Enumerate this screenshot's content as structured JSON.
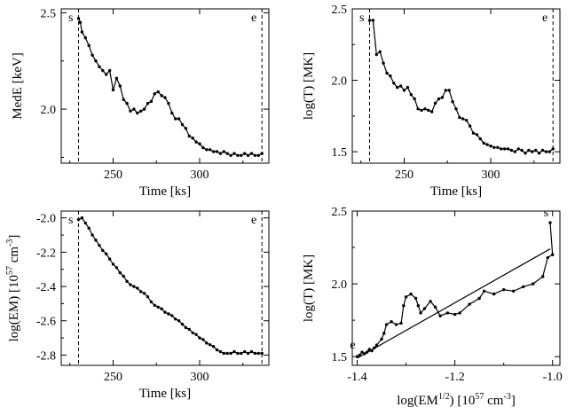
{
  "chart_data": [
    {
      "type": "line",
      "id": "mede",
      "xlabel": "Time [ks]",
      "ylabel": "MedE [keV]",
      "xlim": [
        220,
        340
      ],
      "ylim": [
        1.72,
        2.52
      ],
      "xticks": [
        250,
        300
      ],
      "xtick_labels": [
        "250",
        "300"
      ],
      "yticks": [
        2.0,
        2.5
      ],
      "ytick_labels": [
        "2.0",
        "2.5"
      ],
      "vlines": [
        {
          "x": 230,
          "label": "s"
        },
        {
          "x": 336,
          "label": "e"
        }
      ],
      "series": [
        {
          "name": "MedE",
          "x": [
            230,
            231,
            232,
            234,
            236,
            238,
            240,
            242,
            244,
            246,
            248,
            250,
            252,
            254,
            256,
            258,
            260,
            262,
            264,
            266,
            268,
            270,
            272,
            274,
            276,
            278,
            280,
            282,
            284,
            286,
            288,
            290,
            292,
            294,
            296,
            298,
            300,
            302,
            304,
            306,
            308,
            310,
            312,
            314,
            316,
            318,
            320,
            322,
            324,
            326,
            328,
            330,
            332,
            334,
            336
          ],
          "y": [
            2.47,
            2.45,
            2.4,
            2.37,
            2.33,
            2.28,
            2.25,
            2.22,
            2.2,
            2.18,
            2.2,
            2.1,
            2.16,
            2.12,
            2.05,
            2.03,
            1.99,
            2.0,
            1.98,
            1.99,
            2.0,
            2.03,
            2.04,
            2.08,
            2.09,
            2.07,
            2.06,
            2.03,
            1.98,
            1.95,
            1.95,
            1.92,
            1.9,
            1.86,
            1.85,
            1.83,
            1.82,
            1.8,
            1.79,
            1.79,
            1.78,
            1.78,
            1.77,
            1.78,
            1.77,
            1.76,
            1.77,
            1.76,
            1.76,
            1.77,
            1.76,
            1.77,
            1.76,
            1.76,
            1.77
          ]
        }
      ]
    },
    {
      "type": "line",
      "id": "logT",
      "xlabel": "Time [ks]",
      "ylabel": "log(T) [MK]",
      "xlim": [
        220,
        340
      ],
      "ylim": [
        1.42,
        2.5
      ],
      "xticks": [
        250,
        300
      ],
      "xtick_labels": [
        "250",
        "300"
      ],
      "yticks": [
        1.5,
        2.0,
        2.5
      ],
      "ytick_labels": [
        "1.5",
        "2.0",
        "2.5"
      ],
      "vlines": [
        {
          "x": 230,
          "label": "s"
        },
        {
          "x": 336,
          "label": "e"
        }
      ],
      "series": [
        {
          "name": "log(T)",
          "x": [
            230,
            232,
            234,
            236,
            238,
            240,
            242,
            244,
            246,
            248,
            250,
            252,
            254,
            256,
            258,
            260,
            262,
            264,
            266,
            268,
            270,
            272,
            274,
            276,
            278,
            280,
            282,
            284,
            286,
            288,
            290,
            292,
            294,
            296,
            298,
            300,
            302,
            304,
            306,
            308,
            310,
            312,
            314,
            316,
            318,
            320,
            322,
            324,
            326,
            328,
            330,
            332,
            334,
            336
          ],
          "y": [
            2.42,
            2.42,
            2.18,
            2.2,
            2.12,
            2.05,
            2.03,
            1.98,
            1.95,
            1.96,
            1.93,
            1.95,
            1.9,
            1.87,
            1.8,
            1.79,
            1.8,
            1.79,
            1.78,
            1.84,
            1.87,
            1.88,
            1.93,
            1.93,
            1.85,
            1.8,
            1.74,
            1.73,
            1.72,
            1.68,
            1.63,
            1.62,
            1.59,
            1.56,
            1.55,
            1.54,
            1.53,
            1.53,
            1.52,
            1.52,
            1.52,
            1.51,
            1.5,
            1.52,
            1.51,
            1.49,
            1.51,
            1.5,
            1.51,
            1.49,
            1.51,
            1.5,
            1.5,
            1.52
          ]
        }
      ]
    },
    {
      "type": "line",
      "id": "logEM",
      "xlabel": "Time [ks]",
      "ylabel_main": "log(EM) [10",
      "ylabel_sup1": "57",
      "ylabel_mid": " cm",
      "ylabel_sup2": "-3",
      "ylabel_end": "]",
      "xlim": [
        220,
        340
      ],
      "ylim": [
        -2.86,
        -1.96
      ],
      "xticks": [
        250,
        300
      ],
      "xtick_labels": [
        "250",
        "300"
      ],
      "yticks": [
        -2.8,
        -2.6,
        -2.4,
        -2.2,
        -2.0
      ],
      "ytick_labels": [
        "-2.8",
        "-2.6",
        "-2.4",
        "-2.2",
        "-2.0"
      ],
      "vlines": [
        {
          "x": 230,
          "label": "s"
        },
        {
          "x": 336,
          "label": "e"
        }
      ],
      "series": [
        {
          "name": "log(EM)",
          "x": [
            230,
            232,
            234,
            236,
            238,
            240,
            242,
            244,
            246,
            248,
            250,
            252,
            254,
            256,
            258,
            260,
            262,
            264,
            266,
            268,
            270,
            272,
            274,
            276,
            278,
            280,
            282,
            284,
            286,
            288,
            290,
            292,
            294,
            296,
            298,
            300,
            302,
            304,
            306,
            308,
            310,
            312,
            314,
            316,
            318,
            320,
            322,
            324,
            326,
            328,
            330,
            332,
            334,
            336
          ],
          "y": [
            -2.01,
            -2.0,
            -2.03,
            -2.06,
            -2.1,
            -2.13,
            -2.16,
            -2.19,
            -2.21,
            -2.24,
            -2.27,
            -2.29,
            -2.32,
            -2.34,
            -2.37,
            -2.39,
            -2.4,
            -2.41,
            -2.43,
            -2.44,
            -2.46,
            -2.49,
            -2.51,
            -2.52,
            -2.53,
            -2.55,
            -2.56,
            -2.57,
            -2.59,
            -2.6,
            -2.62,
            -2.64,
            -2.65,
            -2.67,
            -2.68,
            -2.7,
            -2.71,
            -2.73,
            -2.74,
            -2.75,
            -2.77,
            -2.78,
            -2.79,
            -2.79,
            -2.79,
            -2.78,
            -2.79,
            -2.79,
            -2.78,
            -2.79,
            -2.78,
            -2.79,
            -2.79,
            -2.79
          ]
        }
      ]
    },
    {
      "type": "scatter",
      "id": "logT_vs_logEM",
      "xlabel_main": "log(EM",
      "xlabel_sup1": "1/2",
      "xlabel_mid": ") [10",
      "xlabel_sup2": "57",
      "xlabel_mid2": " cm",
      "xlabel_sup3": "-3",
      "xlabel_end": "]",
      "ylabel": "log(T) [MK]",
      "xlim": [
        -1.41,
        -0.985
      ],
      "ylim": [
        1.44,
        2.5
      ],
      "xticks": [
        -1.4,
        -1.2,
        -1.0
      ],
      "xtick_labels": [
        "-1.4",
        "-1.2",
        "-1.0"
      ],
      "yticks": [
        1.5,
        2.0,
        2.5
      ],
      "ytick_labels": [
        "1.5",
        "2.0",
        "2.5"
      ],
      "annotations": [
        {
          "x": -1.003,
          "y": 2.44,
          "label": "s"
        },
        {
          "x": -1.398,
          "y": 1.53,
          "label": "e"
        }
      ],
      "fit_line": {
        "x": [
          -1.4,
          -1.005
        ],
        "y": [
          1.49,
          2.24
        ]
      },
      "series": [
        {
          "name": "track",
          "x": [
            -1.005,
            -1.0,
            -1.01,
            -1.02,
            -1.04,
            -1.06,
            -1.08,
            -1.1,
            -1.12,
            -1.14,
            -1.15,
            -1.17,
            -1.19,
            -1.2,
            -1.215,
            -1.23,
            -1.24,
            -1.25,
            -1.262,
            -1.27,
            -1.275,
            -1.28,
            -1.29,
            -1.3,
            -1.305,
            -1.31,
            -1.32,
            -1.33,
            -1.34,
            -1.345,
            -1.35,
            -1.36,
            -1.365,
            -1.37,
            -1.375,
            -1.38,
            -1.385,
            -1.39,
            -1.395,
            -1.4
          ],
          "y": [
            2.42,
            2.2,
            2.18,
            2.05,
            2.0,
            1.98,
            1.95,
            1.96,
            1.93,
            1.95,
            1.9,
            1.86,
            1.8,
            1.79,
            1.8,
            1.78,
            1.84,
            1.88,
            1.83,
            1.8,
            1.85,
            1.9,
            1.93,
            1.91,
            1.85,
            1.73,
            1.72,
            1.74,
            1.72,
            1.66,
            1.62,
            1.58,
            1.56,
            1.54,
            1.55,
            1.53,
            1.52,
            1.53,
            1.51,
            1.5
          ]
        }
      ]
    }
  ]
}
